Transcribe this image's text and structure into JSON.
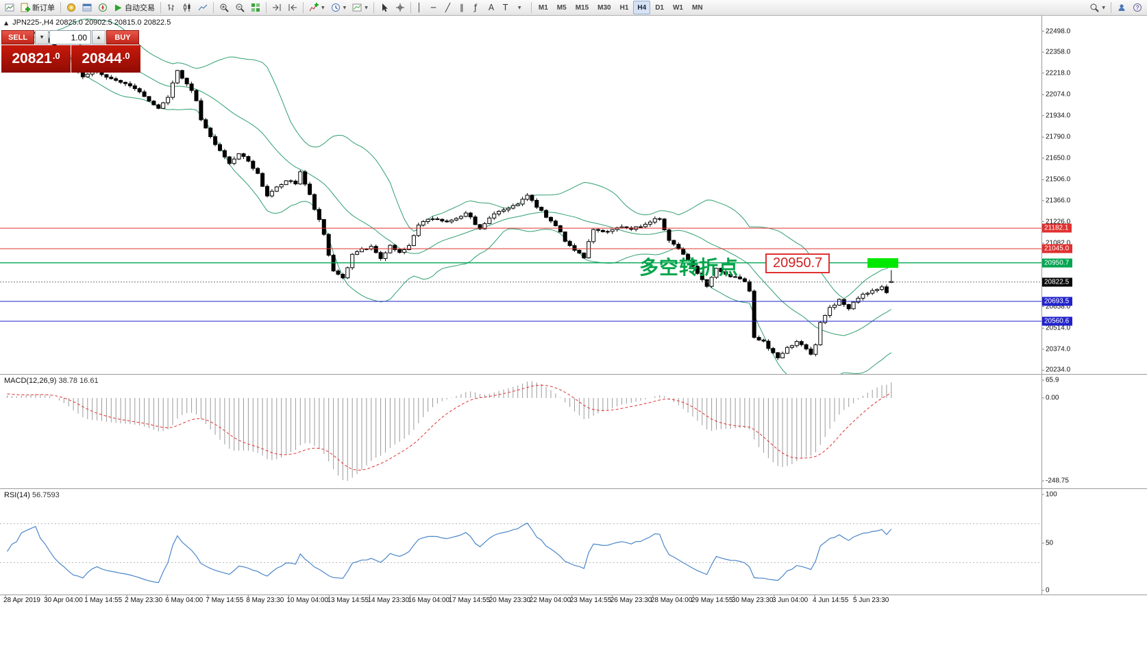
{
  "window": {
    "title": "JPN225-,H4"
  },
  "toolbar": {
    "new_order_label": "新订单",
    "auto_trading_label": "自动交易",
    "timeframes": [
      "M1",
      "M5",
      "M15",
      "M30",
      "H1",
      "H4",
      "D1",
      "W1",
      "MN"
    ],
    "active_timeframe": "H4"
  },
  "symbol_info": {
    "text": "JPN225-,H4  20825.0 20902.5 20815.0 20822.5"
  },
  "trade_panel": {
    "sell_label": "SELL",
    "buy_label": "BUY",
    "volume": "1.00",
    "sell_price": "20821",
    "sell_price_dec": ".0",
    "buy_price": "20844",
    "buy_price_dec": ".0"
  },
  "annotations": {
    "turning_point_text": "多空转折点",
    "price_callout": "20950.7"
  },
  "price_axis": {
    "ticks": [
      22498.0,
      22358.0,
      22218.0,
      22074.0,
      21934.0,
      21790.0,
      21650.0,
      21506.0,
      21366.0,
      21226.0,
      21082.0,
      20658.0,
      20514.0,
      20374.0,
      20234.0
    ]
  },
  "levels": [
    {
      "price": 21182.1,
      "label": "21182.1",
      "color": "red"
    },
    {
      "price": 21045.0,
      "label": "21045.0",
      "color": "red"
    },
    {
      "price": 20950.7,
      "label": "20950.7",
      "color": "green"
    },
    {
      "price": 20822.5,
      "label": "20822.5",
      "color": "black",
      "style": "dashed"
    },
    {
      "price": 20693.5,
      "label": "20693.5",
      "color": "blue"
    },
    {
      "price": 20560.6,
      "label": "20560.6",
      "color": "blue"
    }
  ],
  "macd": {
    "name": "MACD(12,26,9)",
    "values": "38.78 16.61",
    "axis": [
      {
        "v": 65.9,
        "label": "65.9"
      },
      {
        "v": 0,
        "label": "0.00"
      },
      {
        "v": -248.75,
        "label": "-248.75"
      }
    ]
  },
  "rsi": {
    "name": "RSI(14)",
    "value": "56.7593",
    "axis": [
      {
        "v": 100,
        "label": "100"
      },
      {
        "v": 50,
        "label": "50"
      },
      {
        "v": 0,
        "label": "0"
      }
    ],
    "levels": [
      70,
      30
    ]
  },
  "time_axis": [
    "28 Apr 2019",
    "30 Apr 04:00",
    "1 May 14:55",
    "2 May 23:30",
    "6 May 04:00",
    "7 May 14:55",
    "8 May 23:30",
    "10 May 04:00",
    "13 May 14:55",
    "14 May 23:30",
    "16 May 04:00",
    "17 May 14:55",
    "20 May 23:30",
    "22 May 04:00",
    "23 May 14:55",
    "26 May 23:30",
    "28 May 04:00",
    "29 May 14:55",
    "30 May 23:30",
    "3 Jun 04:00",
    "4 Jun 14:55",
    "5 Jun 23:30"
  ],
  "chart_data": {
    "type": "candlestick",
    "symbol": "JPN225-",
    "period": "H4",
    "current_bar": {
      "open": 20825.0,
      "high": 20902.5,
      "low": 20815.0,
      "close": 20822.5
    },
    "visible_bars": 188,
    "price_anchors": [
      [
        -40,
        22380
      ],
      [
        -25,
        22430
      ],
      [
        -10,
        22450
      ],
      [
        -4,
        22470
      ],
      [
        0,
        22430
      ],
      [
        3,
        22460
      ],
      [
        6,
        22490
      ],
      [
        9,
        22430
      ],
      [
        12,
        22330
      ],
      [
        14,
        22250
      ],
      [
        16,
        22200
      ],
      [
        19,
        22230
      ],
      [
        22,
        22180
      ],
      [
        25,
        22150
      ],
      [
        28,
        22100
      ],
      [
        30,
        22030
      ],
      [
        32,
        21980
      ],
      [
        34,
        22060
      ],
      [
        36,
        22230
      ],
      [
        38,
        22150
      ],
      [
        40,
        22040
      ],
      [
        41,
        21900
      ],
      [
        43,
        21790
      ],
      [
        45,
        21700
      ],
      [
        47,
        21620
      ],
      [
        49,
        21680
      ],
      [
        51,
        21630
      ],
      [
        53,
        21540
      ],
      [
        55,
        21390
      ],
      [
        57,
        21460
      ],
      [
        59,
        21500
      ],
      [
        61,
        21480
      ],
      [
        62,
        21560
      ],
      [
        64,
        21400
      ],
      [
        65,
        21300
      ],
      [
        66,
        21240
      ],
      [
        67,
        21140
      ],
      [
        68,
        21000
      ],
      [
        69,
        20900
      ],
      [
        71,
        20850
      ],
      [
        73,
        21000
      ],
      [
        75,
        21040
      ],
      [
        77,
        21060
      ],
      [
        79,
        20980
      ],
      [
        81,
        21070
      ],
      [
        83,
        21020
      ],
      [
        85,
        21060
      ],
      [
        87,
        21200
      ],
      [
        89,
        21240
      ],
      [
        91,
        21240
      ],
      [
        93,
        21220
      ],
      [
        95,
        21240
      ],
      [
        97,
        21290
      ],
      [
        99,
        21210
      ],
      [
        100,
        21180
      ],
      [
        102,
        21250
      ],
      [
        104,
        21300
      ],
      [
        106,
        21320
      ],
      [
        108,
        21350
      ],
      [
        110,
        21400
      ],
      [
        112,
        21330
      ],
      [
        114,
        21260
      ],
      [
        116,
        21200
      ],
      [
        118,
        21100
      ],
      [
        120,
        21030
      ],
      [
        122,
        20990
      ],
      [
        124,
        21180
      ],
      [
        126,
        21160
      ],
      [
        128,
        21170
      ],
      [
        130,
        21190
      ],
      [
        132,
        21180
      ],
      [
        134,
        21190
      ],
      [
        136,
        21230
      ],
      [
        138,
        21250
      ],
      [
        140,
        21100
      ],
      [
        142,
        21050
      ],
      [
        144,
        20970
      ],
      [
        146,
        20880
      ],
      [
        148,
        20800
      ],
      [
        150,
        20920
      ],
      [
        152,
        20870
      ],
      [
        154,
        20860
      ],
      [
        156,
        20820
      ],
      [
        157,
        20760
      ],
      [
        158,
        20450
      ],
      [
        159,
        20430
      ],
      [
        160,
        20420
      ],
      [
        161,
        20380
      ],
      [
        163,
        20310
      ],
      [
        165,
        20380
      ],
      [
        167,
        20420
      ],
      [
        169,
        20380
      ],
      [
        170,
        20340
      ],
      [
        171,
        20400
      ],
      [
        172,
        20550
      ],
      [
        174,
        20650
      ],
      [
        176,
        20700
      ],
      [
        178,
        20640
      ],
      [
        180,
        20720
      ],
      [
        182,
        20750
      ],
      [
        184,
        20770
      ],
      [
        185,
        20790
      ],
      [
        186,
        20750
      ],
      [
        187,
        20822.5
      ]
    ],
    "indicators": [
      {
        "name": "Bollinger Bands",
        "period": 20,
        "deviation": 2
      },
      {
        "name": "MACD",
        "fast": 12,
        "slow": 26,
        "signal": 9
      },
      {
        "name": "RSI",
        "period": 14
      }
    ]
  },
  "colors": {
    "bb": "#2f9e6e",
    "red": "#e03030",
    "green": "#00a651",
    "blue": "#2222cc",
    "black": "#111111",
    "macd_hist": "#9a9a9a",
    "macd_signal": "#e03030",
    "rsi_line": "#4a86c8",
    "highlight": "#00e800",
    "annotation": "#00a44a"
  }
}
